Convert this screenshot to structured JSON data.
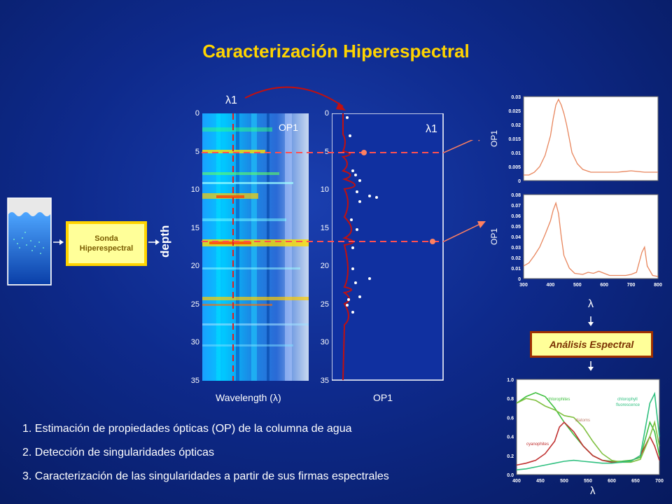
{
  "title": "Caracterización Hiperespectral",
  "sonda": {
    "line1": "Sonda",
    "line2": "Hiperespectral"
  },
  "depth_label": "depth",
  "lambda1": "λ1",
  "op1": "OP1",
  "wavelength_label": "Wavelength (λ)",
  "depth_ticks": [
    "0",
    "5",
    "10",
    "15",
    "20",
    "25",
    "30",
    "35"
  ],
  "lambda": "λ",
  "analisis": "Análisis Espectral",
  "list": [
    "1. Estimación de propiedades ópticas (OP) de la columna de agua",
    "2. Detección de singularidades ópticas",
    "3. Caracterización de las singularidades a partir de sus firmas espectrales"
  ],
  "chart_data": [
    {
      "type": "line",
      "ylabel": "OP1",
      "x": [
        300,
        320,
        340,
        360,
        380,
        400,
        410,
        420,
        430,
        440,
        450,
        460,
        470,
        480,
        500,
        520,
        550,
        580,
        600,
        650,
        700,
        750,
        800
      ],
      "values": [
        0.002,
        0.002,
        0.003,
        0.005,
        0.009,
        0.016,
        0.022,
        0.027,
        0.029,
        0.027,
        0.024,
        0.02,
        0.015,
        0.01,
        0.006,
        0.004,
        0.003,
        0.003,
        0.003,
        0.003,
        0.0035,
        0.003,
        0.003
      ],
      "xlim": [
        300,
        800
      ],
      "ylim": [
        0,
        0.03
      ],
      "yticks": [
        "0",
        "0.005",
        "0.01",
        "0.015",
        "0.02",
        "0.025",
        "0.03"
      ]
    },
    {
      "type": "line",
      "ylabel": "OP1",
      "x": [
        300,
        320,
        340,
        360,
        380,
        400,
        410,
        420,
        430,
        440,
        450,
        470,
        490,
        520,
        540,
        560,
        580,
        600,
        620,
        650,
        680,
        700,
        720,
        740,
        750,
        760,
        780,
        800
      ],
      "values": [
        0.012,
        0.015,
        0.022,
        0.03,
        0.042,
        0.055,
        0.065,
        0.072,
        0.062,
        0.04,
        0.022,
        0.01,
        0.005,
        0.004,
        0.006,
        0.005,
        0.007,
        0.005,
        0.003,
        0.003,
        0.003,
        0.004,
        0.006,
        0.025,
        0.03,
        0.012,
        0.003,
        0.002
      ],
      "xlim": [
        300,
        800
      ],
      "ylim": [
        0,
        0.08
      ],
      "xticks": [
        "300",
        "400",
        "500",
        "600",
        "700",
        "800"
      ],
      "yticks": [
        "0",
        "0.01",
        "0.02",
        "0.03",
        "0.04",
        "0.05",
        "0.06",
        "0.07",
        "0.08"
      ]
    },
    {
      "type": "line",
      "xlim": [
        400,
        700
      ],
      "ylim": [
        0,
        1.0
      ],
      "xticks": [
        "400",
        "450",
        "500",
        "550",
        "600",
        "650",
        "700"
      ],
      "yticks": [
        "0.0",
        "0.2",
        "0.4",
        "0.6",
        "0.8",
        "1.0"
      ],
      "annotations": [
        "chlorophites",
        "chlorophyll fluorescence",
        "diatoms",
        "cyanophites"
      ],
      "series": [
        {
          "x": [
            400,
            420,
            440,
            460,
            480,
            500,
            520,
            540,
            560,
            580,
            600,
            620,
            640,
            660,
            680,
            690,
            700
          ],
          "values": [
            0.75,
            0.82,
            0.86,
            0.82,
            0.7,
            0.55,
            0.42,
            0.3,
            0.2,
            0.15,
            0.14,
            0.14,
            0.15,
            0.18,
            0.55,
            0.45,
            0.2
          ]
        },
        {
          "x": [
            400,
            420,
            440,
            460,
            480,
            490,
            500,
            520,
            540,
            560,
            580,
            600,
            620,
            640,
            660,
            680,
            690,
            700
          ],
          "values": [
            0.1,
            0.12,
            0.15,
            0.22,
            0.35,
            0.5,
            0.55,
            0.45,
            0.3,
            0.2,
            0.15,
            0.13,
            0.13,
            0.14,
            0.2,
            0.4,
            0.3,
            0.15
          ]
        },
        {
          "x": [
            400,
            420,
            440,
            460,
            480,
            490,
            500,
            520,
            540,
            560,
            580,
            600,
            620,
            640,
            660,
            680,
            690,
            700
          ],
          "values": [
            0.75,
            0.8,
            0.78,
            0.72,
            0.68,
            0.65,
            0.62,
            0.6,
            0.5,
            0.35,
            0.22,
            0.15,
            0.13,
            0.13,
            0.16,
            0.4,
            0.55,
            0.3
          ]
        },
        {
          "x": [
            400,
            420,
            440,
            460,
            480,
            500,
            520,
            540,
            560,
            580,
            600,
            620,
            640,
            660,
            680,
            690,
            700
          ],
          "values": [
            0.05,
            0.06,
            0.08,
            0.1,
            0.12,
            0.14,
            0.15,
            0.14,
            0.13,
            0.12,
            0.12,
            0.13,
            0.14,
            0.2,
            0.75,
            0.85,
            0.4
          ]
        }
      ]
    }
  ]
}
